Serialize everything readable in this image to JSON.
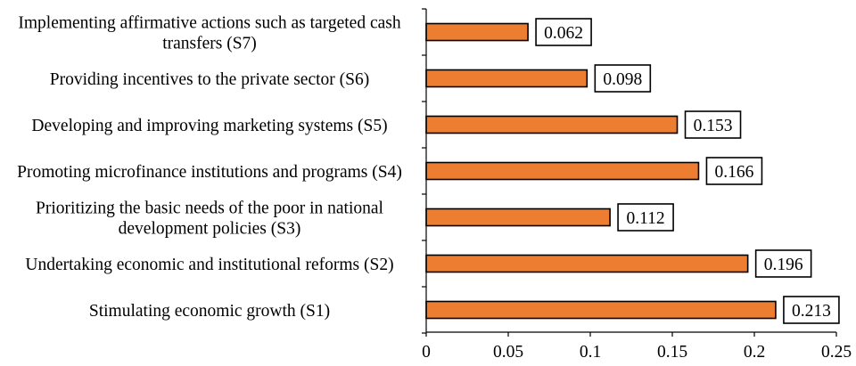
{
  "chart_data": {
    "type": "bar",
    "orientation": "horizontal",
    "title": "",
    "xlabel": "",
    "ylabel": "",
    "categories": [
      [
        "Implementing affirmative actions such as targeted cash",
        "transfers (S7)"
      ],
      [
        "Providing incentives to the private sector (S6)"
      ],
      [
        "Developing and improving marketing systems (S5)"
      ],
      [
        "Promoting microfinance institutions and programs (S4)"
      ],
      [
        "Prioritizing the basic needs of the poor in national",
        "development policies (S3)"
      ],
      [
        "Undertaking economic and institutional reforms (S2)"
      ],
      [
        "Stimulating economic growth (S1)"
      ]
    ],
    "values": [
      0.062,
      0.098,
      0.153,
      0.166,
      0.112,
      0.196,
      0.213
    ],
    "data_labels": [
      "0.062",
      "0.098",
      "0.153",
      "0.166",
      "0.112",
      "0.196",
      "0.213"
    ],
    "xlim": [
      0,
      0.25
    ],
    "xticks": [
      0,
      0.05,
      0.1,
      0.15,
      0.2,
      0.25
    ],
    "xtick_labels": [
      "0",
      "0.05",
      "0.1",
      "0.15",
      "0.2",
      "0.25"
    ],
    "grid": false,
    "legend": "none",
    "colors": {
      "bar_fill": "#ED7D31",
      "bar_stroke": "#000000",
      "axis": "#000000",
      "label_box": "#000000"
    }
  }
}
